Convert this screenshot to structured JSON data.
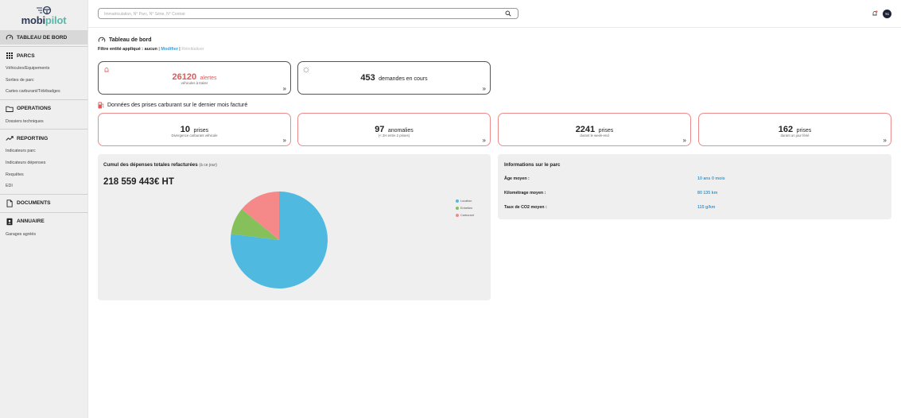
{
  "brand": {
    "name_part1": "mobi",
    "name_part2": "pilot"
  },
  "sidebar": {
    "sections": [
      {
        "label": "TABLEAU DE BORD",
        "icon": "gauge-icon",
        "items": []
      },
      {
        "label": "PARCS",
        "icon": "grid-icon",
        "items": [
          "Véhicules/Equipements",
          "Sorties de parc",
          "Cartes carburant/Télébadges"
        ]
      },
      {
        "label": "OPERATIONS",
        "icon": "folder-icon",
        "items": [
          "Dossiers techniques"
        ]
      },
      {
        "label": "REPORTING",
        "icon": "trend-icon",
        "items": [
          "Indicateurs parc",
          "Indicateurs dépenses",
          "Requêtes",
          "EDI"
        ]
      },
      {
        "label": "DOCUMENTS",
        "icon": "document-icon",
        "items": []
      },
      {
        "label": "ANNUAIRE",
        "icon": "contacts-icon",
        "items": [
          "Garages agréés"
        ]
      }
    ]
  },
  "header": {
    "search_placeholder": "Immatriculation, N° Parc, N° Série, N° Contrat",
    "avatar_initials": "TC"
  },
  "main": {
    "title": "Tableau de bord",
    "filter": {
      "label": "Filtre entité appliqué : aucun",
      "sep": "|",
      "modify": "Modifier",
      "reset": "Réinitialiser"
    },
    "top_cards": [
      {
        "number": "26120",
        "unit": "alertes",
        "sub": "véhicules à traiter",
        "color": "#e55656",
        "icon": "bell-icon"
      },
      {
        "number": "453",
        "unit": "demandes en cours",
        "sub": "",
        "color": "#222",
        "icon": "spinner-icon"
      }
    ],
    "fuel_section_title": "Données des prises carburant sur le dernier mois facturé",
    "fuel_cards": [
      {
        "number": "10",
        "unit": "prises",
        "sub": "Divergence carburant véhicule"
      },
      {
        "number": "97",
        "unit": "anomalies",
        "sub": "(< 2H entre 2 prises)"
      },
      {
        "number": "2241",
        "unit": "prises",
        "sub": "durant le week-end"
      },
      {
        "number": "162",
        "unit": "prises",
        "sub": "durant un jour férié"
      }
    ],
    "arrow": "»",
    "expenses": {
      "title": "Cumul des dépenses totales refacturées",
      "title_note": "(à ce jour)",
      "total": "218 559 443€ HT"
    },
    "info": {
      "title": "Informations sur le parc",
      "rows": [
        {
          "label": "Âge moyen :",
          "value": "10 ans 0 mois"
        },
        {
          "label": "Kilométrage moyen :",
          "value": "80 135 km"
        },
        {
          "label": "Taux de CO2 moyen :",
          "value": "115 g/km"
        }
      ]
    }
  },
  "chart_data": {
    "type": "pie",
    "categories": [
      "Location",
      "Entretien",
      "Carburant"
    ],
    "values": [
      77,
      9,
      14
    ],
    "colors": [
      "#4fb9e0",
      "#86c05a",
      "#f5898a"
    ],
    "legend_position": "top-right"
  }
}
